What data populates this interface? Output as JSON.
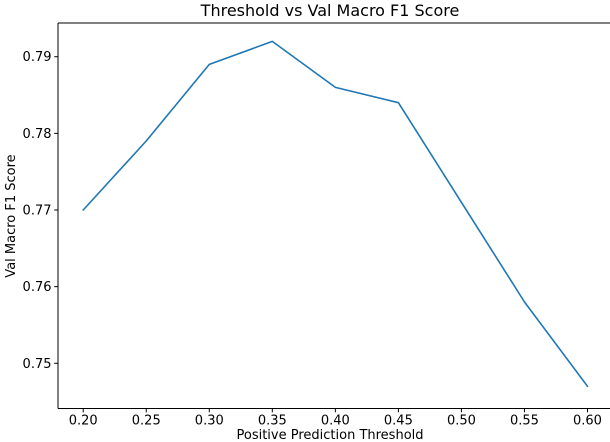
{
  "figure": {
    "title": "Threshold vs Val Macro F1 Score",
    "xlabel": "Positive Prediction Threshold",
    "ylabel": "Val Macro F1 Score"
  },
  "chart_data": {
    "type": "line",
    "title": "Threshold vs Val Macro F1 Score",
    "xlabel": "Positive Prediction Threshold",
    "ylabel": "Val Macro F1 Score",
    "x": [
      0.2,
      0.25,
      0.3,
      0.35,
      0.4,
      0.45,
      0.5,
      0.55,
      0.6
    ],
    "y": [
      0.77,
      0.779,
      0.789,
      0.792,
      0.786,
      0.784,
      0.771,
      0.758,
      0.747
    ],
    "x_tick_labels": [
      "0.20",
      "0.25",
      "0.30",
      "0.35",
      "0.40",
      "0.45",
      "0.50",
      "0.55",
      "0.60"
    ],
    "y_tick_labels": [
      "0.75",
      "0.76",
      "0.77",
      "0.78",
      "0.79"
    ],
    "xlim": [
      0.18,
      0.62
    ],
    "ylim": [
      0.7441,
      0.7944
    ],
    "line_color": "#1f77b4",
    "axis_color": "#000000",
    "grid": false,
    "legend": null
  }
}
